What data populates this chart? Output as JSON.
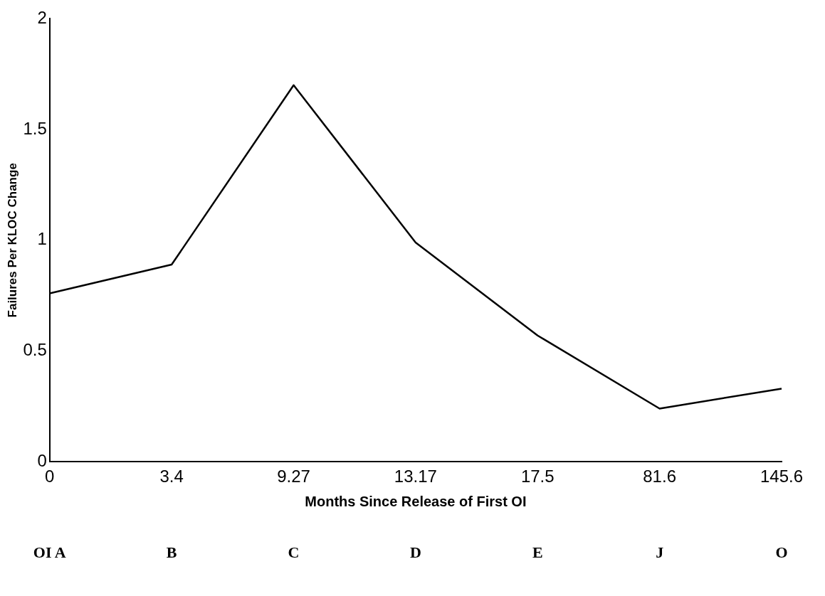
{
  "chart_data": {
    "type": "line",
    "xlabel": "Months Since Release of First OI",
    "ylabel": "Failures Per KLOC Change",
    "categories": [
      "0",
      "3.4",
      "9.27",
      "13.17",
      "17.5",
      "81.6",
      "145.6"
    ],
    "series": [
      {
        "color": "#000000",
        "values": [
          0.76,
          0.89,
          1.7,
          0.99,
          0.57,
          0.24,
          0.33
        ]
      }
    ],
    "ylim": [
      0,
      2
    ],
    "yticks": [
      0,
      0.5,
      1,
      1.5,
      2
    ],
    "grid": false,
    "legend": false,
    "marker": "none",
    "line_style": "solid",
    "annotations": [
      "OI A",
      "B",
      "C",
      "D",
      "E",
      "J",
      "O"
    ]
  }
}
